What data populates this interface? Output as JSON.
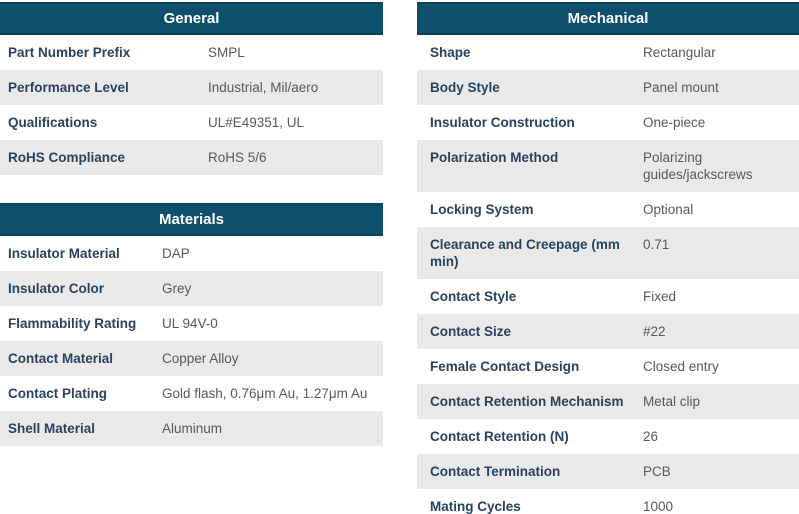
{
  "theme": {
    "header_bg": "#0f4f6e",
    "header_border": "#0d4157",
    "header_text": "#ffffff",
    "row_alt_bg": "#e9e9e9",
    "label_color": "#27435e",
    "value_color": "#595959"
  },
  "tables": {
    "general": {
      "title": "General",
      "rows": [
        {
          "label": "Part Number Prefix",
          "value": "SMPL"
        },
        {
          "label": "Performance Level",
          "value": "Industrial, Mil/aero"
        },
        {
          "label": "Qualifications",
          "value": "UL#E49351, UL"
        },
        {
          "label": "RoHS Compliance",
          "value": "RoHS 5/6"
        }
      ]
    },
    "materials": {
      "title": "Materials",
      "rows": [
        {
          "label": "Insulator Material",
          "value": "DAP"
        },
        {
          "label": "Insulator Color",
          "value": "Grey"
        },
        {
          "label": "Flammability Rating",
          "value": "UL 94V-0"
        },
        {
          "label": "Contact Material",
          "value": "Copper Alloy"
        },
        {
          "label": "Contact Plating",
          "value": "Gold flash, 0.76μm Au, 1.27μm Au"
        },
        {
          "label": "Shell Material",
          "value": "Aluminum"
        }
      ]
    },
    "mechanical": {
      "title": "Mechanical",
      "rows": [
        {
          "label": "Shape",
          "value": "Rectangular"
        },
        {
          "label": "Body Style",
          "value": "Panel mount"
        },
        {
          "label": "Insulator Construction",
          "value": "One-piece"
        },
        {
          "label": "Polarization Method",
          "value": "Polarizing guides/jackscrews"
        },
        {
          "label": "Locking System",
          "value": "Optional"
        },
        {
          "label": "Clearance and Creepage (mm min)",
          "value": "0.71"
        },
        {
          "label": "Contact Style",
          "value": "Fixed"
        },
        {
          "label": "Contact Size",
          "value": "#22"
        },
        {
          "label": "Female Contact Design",
          "value": "Closed entry"
        },
        {
          "label": "Contact Retention Mechanism",
          "value": "Metal clip"
        },
        {
          "label": "Contact Retention (N)",
          "value": "26"
        },
        {
          "label": "Contact Termination",
          "value": "PCB"
        },
        {
          "label": "Mating Cycles",
          "value": "1000"
        }
      ]
    }
  }
}
